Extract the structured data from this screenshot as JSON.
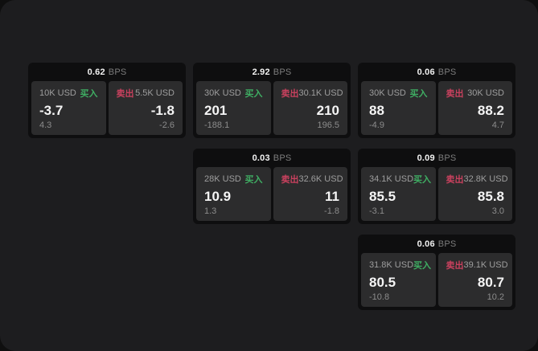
{
  "app": {
    "unit_label": "BPS",
    "buy_label": "买入",
    "sell_label": "卖出"
  },
  "colors": {
    "buy": "#3fae63",
    "sell": "#c9415e",
    "page_bg": "#1d1d1f",
    "card_bg": "#0e0e0f",
    "panel_bg": "#2c2c2d"
  },
  "cards": [
    {
      "bps": "0.62",
      "grid": {
        "row": 1,
        "col": 1
      },
      "buy": {
        "amount": "10K USD",
        "price": "-3.7",
        "change": "4.3"
      },
      "sell": {
        "amount": "5.5K USD",
        "price": "-1.8",
        "change": "-2.6"
      }
    },
    {
      "bps": "2.92",
      "grid": {
        "row": 1,
        "col": 2
      },
      "buy": {
        "amount": "30K USD",
        "price": "201",
        "change": "-188.1"
      },
      "sell": {
        "amount": "30.1K USD",
        "price": "210",
        "change": "196.5"
      }
    },
    {
      "bps": "0.06",
      "grid": {
        "row": 1,
        "col": 3
      },
      "buy": {
        "amount": "30K USD",
        "price": "88",
        "change": "-4.9"
      },
      "sell": {
        "amount": "30K USD",
        "price": "88.2",
        "change": "4.7"
      }
    },
    {
      "bps": "0.03",
      "grid": {
        "row": 2,
        "col": 2
      },
      "buy": {
        "amount": "28K USD",
        "price": "10.9",
        "change": "1.3"
      },
      "sell": {
        "amount": "32.6K USD",
        "price": "11",
        "change": "-1.8"
      }
    },
    {
      "bps": "0.09",
      "grid": {
        "row": 2,
        "col": 3
      },
      "buy": {
        "amount": "34.1K USD",
        "price": "85.5",
        "change": "-3.1"
      },
      "sell": {
        "amount": "32.8K USD",
        "price": "85.8",
        "change": "3.0"
      }
    },
    {
      "bps": "0.06",
      "grid": {
        "row": 3,
        "col": 3
      },
      "buy": {
        "amount": "31.8K USD",
        "price": "80.5",
        "change": "-10.8"
      },
      "sell": {
        "amount": "39.1K USD",
        "price": "80.7",
        "change": "10.2"
      }
    }
  ]
}
